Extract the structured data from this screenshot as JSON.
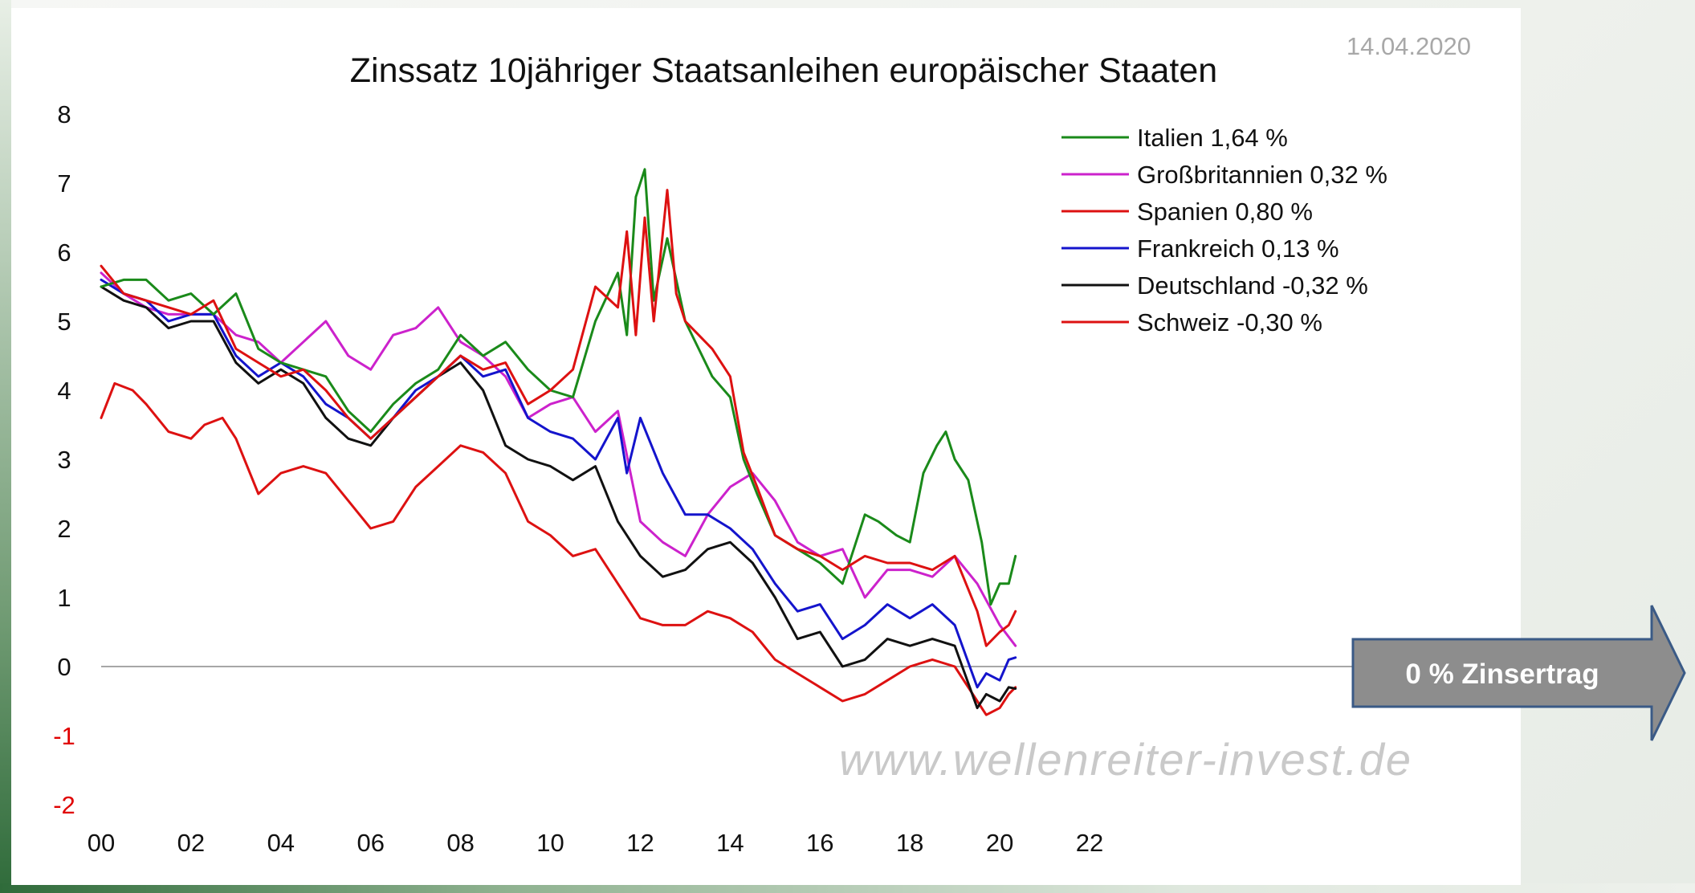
{
  "chart_data": {
    "type": "line",
    "title": "Zinssatz 10jähriger Staatsanleihen europäischer Staaten",
    "date": "14.04.2020",
    "watermark": "www.wellenreiter-invest.de",
    "xlabel": "",
    "ylabel": "",
    "xlim": [
      0,
      22
    ],
    "ylim": [
      -2,
      8
    ],
    "x_ticks": [
      {
        "value": 0,
        "label": "00"
      },
      {
        "value": 2,
        "label": "02"
      },
      {
        "value": 4,
        "label": "04"
      },
      {
        "value": 6,
        "label": "06"
      },
      {
        "value": 8,
        "label": "08"
      },
      {
        "value": 10,
        "label": "10"
      },
      {
        "value": 12,
        "label": "12"
      },
      {
        "value": 14,
        "label": "14"
      },
      {
        "value": 16,
        "label": "16"
      },
      {
        "value": 18,
        "label": "18"
      },
      {
        "value": 20,
        "label": "20"
      },
      {
        "value": 22,
        "label": "22"
      }
    ],
    "y_ticks": [
      {
        "value": 8,
        "label": "8",
        "color": "#111111"
      },
      {
        "value": 7,
        "label": "7",
        "color": "#111111"
      },
      {
        "value": 6,
        "label": "6",
        "color": "#111111"
      },
      {
        "value": 5,
        "label": "5",
        "color": "#111111"
      },
      {
        "value": 4,
        "label": "4",
        "color": "#111111"
      },
      {
        "value": 3,
        "label": "3",
        "color": "#111111"
      },
      {
        "value": 2,
        "label": "2",
        "color": "#111111"
      },
      {
        "value": 1,
        "label": "1",
        "color": "#111111"
      },
      {
        "value": 0,
        "label": "0",
        "color": "#111111"
      },
      {
        "value": -1,
        "label": "-1",
        "color": "#e00000"
      },
      {
        "value": -2,
        "label": "-2",
        "color": "#e00000"
      }
    ],
    "zero_line": true,
    "legend_position": "top-right",
    "series": [
      {
        "name": "Italien",
        "legend": "Italien 1,64 %",
        "color": "#1a8a1a",
        "x": [
          0,
          0.5,
          1,
          1.5,
          2,
          2.5,
          3,
          3.5,
          4,
          4.5,
          5,
          5.5,
          6,
          6.5,
          7,
          7.5,
          8,
          8.5,
          9,
          9.5,
          10,
          10.5,
          11,
          11.5,
          11.7,
          11.9,
          12.1,
          12.3,
          12.6,
          13,
          13.3,
          13.6,
          14,
          14.3,
          14.6,
          15,
          15.5,
          16,
          16.5,
          17,
          17.3,
          17.7,
          18,
          18.3,
          18.6,
          18.8,
          19,
          19.3,
          19.6,
          19.8,
          20,
          20.2,
          20.35
        ],
        "y": [
          5.5,
          5.6,
          5.6,
          5.3,
          5.4,
          5.1,
          5.4,
          4.6,
          4.4,
          4.3,
          4.2,
          3.7,
          3.4,
          3.8,
          4.1,
          4.3,
          4.8,
          4.5,
          4.7,
          4.3,
          4.0,
          3.9,
          5.0,
          5.7,
          4.8,
          6.8,
          7.2,
          5.3,
          6.2,
          5.0,
          4.6,
          4.2,
          3.9,
          3.0,
          2.5,
          1.9,
          1.7,
          1.5,
          1.2,
          2.2,
          2.1,
          1.9,
          1.8,
          2.8,
          3.2,
          3.4,
          3.0,
          2.7,
          1.8,
          0.9,
          1.2,
          1.2,
          1.6
        ]
      },
      {
        "name": "Großbritannien",
        "legend": "Großbritannien 0,32 %",
        "color": "#cc22cc",
        "x": [
          0,
          0.5,
          1,
          1.5,
          2,
          2.5,
          3,
          3.5,
          4,
          4.5,
          5,
          5.5,
          6,
          6.5,
          7,
          7.5,
          8,
          8.5,
          9,
          9.5,
          10,
          10.5,
          11,
          11.5,
          12,
          12.5,
          13,
          13.5,
          14,
          14.5,
          15,
          15.5,
          16,
          16.5,
          17,
          17.5,
          18,
          18.5,
          19,
          19.5,
          20,
          20.35
        ],
        "y": [
          5.7,
          5.4,
          5.2,
          5.1,
          5.1,
          5.1,
          4.8,
          4.7,
          4.4,
          4.7,
          5.0,
          4.5,
          4.3,
          4.8,
          4.9,
          5.2,
          4.7,
          4.5,
          4.2,
          3.6,
          3.8,
          3.9,
          3.4,
          3.7,
          2.1,
          1.8,
          1.6,
          2.2,
          2.6,
          2.8,
          2.4,
          1.8,
          1.6,
          1.7,
          1.0,
          1.4,
          1.4,
          1.3,
          1.6,
          1.2,
          0.6,
          0.3
        ]
      },
      {
        "name": "Spanien",
        "legend": "Spanien 0,80 %",
        "color": "#dd1111",
        "x": [
          0,
          0.5,
          1,
          1.5,
          2,
          2.5,
          3,
          3.5,
          4,
          4.5,
          5,
          5.5,
          6,
          6.5,
          7,
          7.5,
          8,
          8.5,
          9,
          9.5,
          10,
          10.5,
          11,
          11.5,
          11.7,
          11.9,
          12.1,
          12.3,
          12.6,
          12.8,
          13,
          13.3,
          13.6,
          14,
          14.3,
          14.6,
          15,
          15.5,
          16,
          16.5,
          17,
          17.5,
          18,
          18.5,
          19,
          19.5,
          19.7,
          20,
          20.2,
          20.35
        ],
        "y": [
          5.8,
          5.4,
          5.3,
          5.2,
          5.1,
          5.3,
          4.6,
          4.4,
          4.2,
          4.3,
          4.0,
          3.6,
          3.3,
          3.6,
          3.9,
          4.2,
          4.5,
          4.3,
          4.4,
          3.8,
          4.0,
          4.3,
          5.5,
          5.2,
          6.3,
          4.8,
          6.5,
          5.0,
          6.9,
          5.4,
          5.0,
          4.8,
          4.6,
          4.2,
          3.1,
          2.6,
          1.9,
          1.7,
          1.6,
          1.4,
          1.6,
          1.5,
          1.5,
          1.4,
          1.6,
          0.8,
          0.3,
          0.5,
          0.6,
          0.8
        ]
      },
      {
        "name": "Frankreich",
        "legend": "Frankreich 0,13 %",
        "color": "#1414cc",
        "x": [
          0,
          0.5,
          1,
          1.5,
          2,
          2.5,
          3,
          3.5,
          4,
          4.5,
          5,
          5.5,
          6,
          6.5,
          7,
          7.5,
          8,
          8.5,
          9,
          9.5,
          10,
          10.5,
          11,
          11.5,
          11.7,
          12,
          12.5,
          13,
          13.5,
          14,
          14.5,
          15,
          15.5,
          16,
          16.5,
          17,
          17.5,
          18,
          18.5,
          19,
          19.5,
          19.7,
          20,
          20.2,
          20.35
        ],
        "y": [
          5.6,
          5.4,
          5.3,
          5.0,
          5.1,
          5.1,
          4.5,
          4.2,
          4.4,
          4.2,
          3.8,
          3.6,
          3.3,
          3.6,
          4.0,
          4.2,
          4.5,
          4.2,
          4.3,
          3.6,
          3.4,
          3.3,
          3.0,
          3.6,
          2.8,
          3.6,
          2.8,
          2.2,
          2.2,
          2.0,
          1.7,
          1.2,
          0.8,
          0.9,
          0.4,
          0.6,
          0.9,
          0.7,
          0.9,
          0.6,
          -0.3,
          -0.1,
          -0.2,
          0.1,
          0.13
        ]
      },
      {
        "name": "Deutschland",
        "legend": "Deutschland -0,32 %",
        "color": "#111111",
        "x": [
          0,
          0.5,
          1,
          1.5,
          2,
          2.5,
          3,
          3.5,
          4,
          4.5,
          5,
          5.5,
          6,
          6.5,
          7,
          7.5,
          8,
          8.5,
          9,
          9.5,
          10,
          10.5,
          11,
          11.5,
          12,
          12.5,
          13,
          13.5,
          14,
          14.5,
          15,
          15.5,
          16,
          16.5,
          17,
          17.5,
          18,
          18.5,
          19,
          19.5,
          19.7,
          20,
          20.2,
          20.35
        ],
        "y": [
          5.5,
          5.3,
          5.2,
          4.9,
          5.0,
          5.0,
          4.4,
          4.1,
          4.3,
          4.1,
          3.6,
          3.3,
          3.2,
          3.6,
          3.9,
          4.2,
          4.4,
          4.0,
          3.2,
          3.0,
          2.9,
          2.7,
          2.9,
          2.1,
          1.6,
          1.3,
          1.4,
          1.7,
          1.8,
          1.5,
          1.0,
          0.4,
          0.5,
          0.0,
          0.1,
          0.4,
          0.3,
          0.4,
          0.3,
          -0.6,
          -0.4,
          -0.5,
          -0.3,
          -0.32
        ]
      },
      {
        "name": "Schweiz",
        "legend": "Schweiz -0,30 %",
        "color": "#dd1111",
        "x": [
          0,
          0.3,
          0.7,
          1,
          1.5,
          2,
          2.3,
          2.7,
          3,
          3.5,
          4,
          4.5,
          5,
          5.5,
          6,
          6.5,
          7,
          7.5,
          8,
          8.5,
          9,
          9.5,
          10,
          10.5,
          11,
          11.5,
          12,
          12.5,
          13,
          13.5,
          14,
          14.5,
          15,
          15.5,
          16,
          16.5,
          17,
          17.5,
          18,
          18.5,
          19,
          19.5,
          19.7,
          20,
          20.2,
          20.35
        ],
        "y": [
          3.6,
          4.1,
          4.0,
          3.8,
          3.4,
          3.3,
          3.5,
          3.6,
          3.3,
          2.5,
          2.8,
          2.9,
          2.8,
          2.4,
          2.0,
          2.1,
          2.6,
          2.9,
          3.2,
          3.1,
          2.8,
          2.1,
          1.9,
          1.6,
          1.7,
          1.2,
          0.7,
          0.6,
          0.6,
          0.8,
          0.7,
          0.5,
          0.1,
          -0.1,
          -0.3,
          -0.5,
          -0.4,
          -0.2,
          0.0,
          0.1,
          0.0,
          -0.5,
          -0.7,
          -0.6,
          -0.4,
          -0.3
        ]
      }
    ]
  },
  "annotation": {
    "label": "0 % Zinsertrag",
    "fill": "#8d8d8d",
    "stroke": "#3a5a86"
  }
}
